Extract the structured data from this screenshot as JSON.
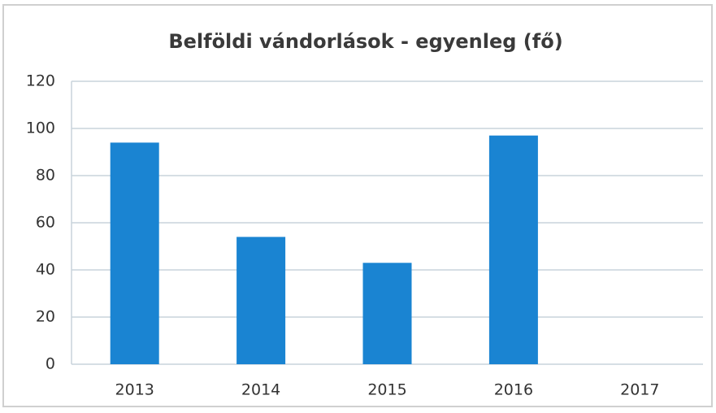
{
  "chart_data": {
    "type": "bar",
    "title": "Belföldi vándorlások - egyenleg (fő)",
    "categories": [
      "2013",
      "2014",
      "2015",
      "2016",
      "2017"
    ],
    "values": [
      94,
      54,
      43,
      97,
      null
    ],
    "color": "#1a84d2",
    "ylim": [
      0,
      120
    ],
    "yticks": [
      0,
      20,
      40,
      60,
      80,
      100,
      120
    ],
    "grid": true
  }
}
